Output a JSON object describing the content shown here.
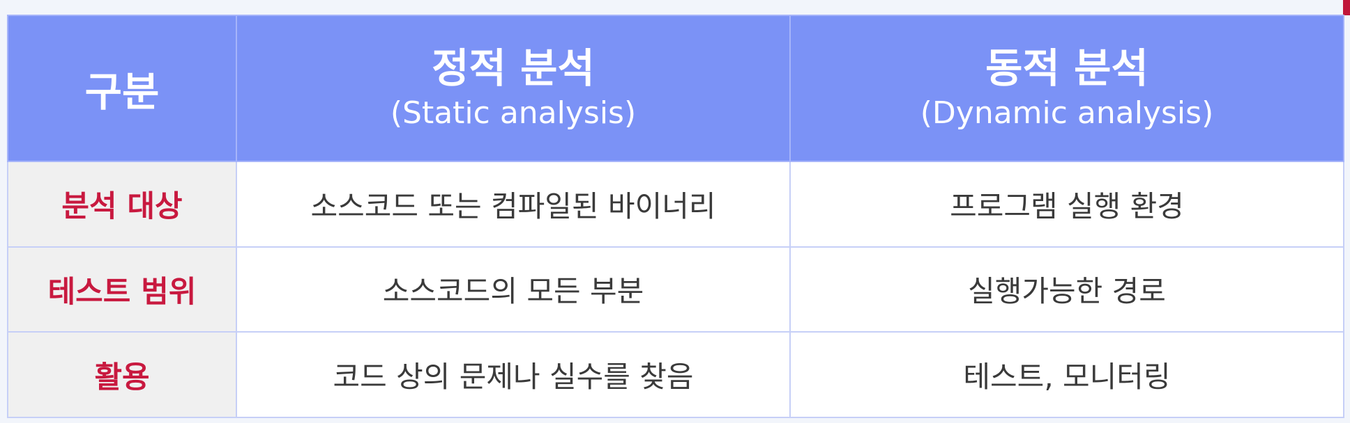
{
  "header": {
    "category_label": "구분",
    "static": {
      "title": "정적 분석",
      "subtitle": "(Static analysis)"
    },
    "dynamic": {
      "title": "동적 분석",
      "subtitle": "(Dynamic analysis)"
    }
  },
  "rows": [
    {
      "label": "분석 대상",
      "static": "소스코드 또는 컴파일된 바이너리",
      "dynamic": "프로그램 실행 환경"
    },
    {
      "label": "테스트 범위",
      "static": "소스코드의 모든 부분",
      "dynamic": "실행가능한 경로"
    },
    {
      "label": "활용",
      "static": "코드 상의 문제나 실수를 찾음",
      "dynamic": "테스트, 모니터링"
    }
  ],
  "colors": {
    "header_bg": "#7b92f6",
    "row_label_text": "#c8193f",
    "row_label_bg": "#f0f0f0",
    "border": "#c6cff7",
    "corner_accent": "#c0163a"
  }
}
